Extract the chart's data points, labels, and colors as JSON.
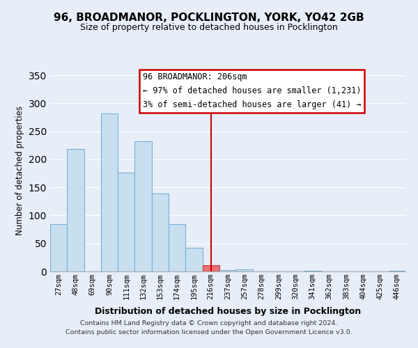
{
  "title": "96, BROADMANOR, POCKLINGTON, YORK, YO42 2GB",
  "subtitle": "Size of property relative to detached houses in Pocklington",
  "xlabel": "Distribution of detached houses by size in Pocklington",
  "ylabel": "Number of detached properties",
  "footer_line1": "Contains HM Land Registry data © Crown copyright and database right 2024.",
  "footer_line2": "Contains public sector information licensed under the Open Government Licence v3.0.",
  "bar_labels": [
    "27sqm",
    "48sqm",
    "69sqm",
    "90sqm",
    "111sqm",
    "132sqm",
    "153sqm",
    "174sqm",
    "195sqm",
    "216sqm",
    "237sqm",
    "257sqm",
    "278sqm",
    "299sqm",
    "320sqm",
    "341sqm",
    "362sqm",
    "383sqm",
    "404sqm",
    "425sqm",
    "446sqm"
  ],
  "bar_values": [
    85,
    219,
    0,
    282,
    176,
    232,
    139,
    84,
    42,
    11,
    3,
    4,
    0,
    0,
    0,
    1,
    0,
    0,
    0,
    0,
    1
  ],
  "bar_color": "#c8dff0",
  "bar_edge_color": "#7ab0d4",
  "highlight_bar_color": "#e87070",
  "highlight_bar_edge": "#c04040",
  "highlight_bar_index": 9,
  "vline_color": "#cc0000",
  "vline_index": 9,
  "annotation_title": "96 BROADMANOR: 206sqm",
  "annotation_line1": "← 97% of detached houses are smaller (1,231)",
  "annotation_line2": "3% of semi-detached houses are larger (41) →",
  "annotation_box_color": "#ffffff",
  "annotation_box_edge": "#cc0000",
  "ylim": [
    0,
    360
  ],
  "yticks": [
    0,
    50,
    100,
    150,
    200,
    250,
    300,
    350
  ],
  "background_color": "#e8eef8",
  "grid_color": "#ffffff",
  "title_fontsize": 11,
  "subtitle_fontsize": 9
}
